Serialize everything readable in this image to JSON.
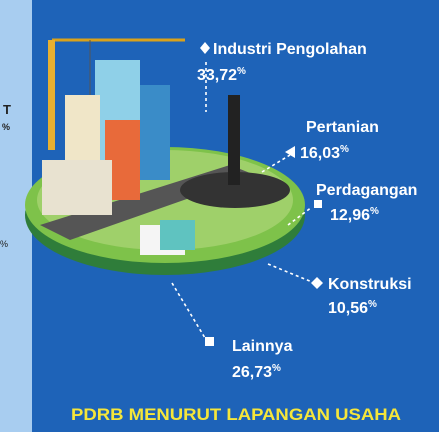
{
  "left_fragments": {
    "top": "T",
    "top_unit": "%",
    "bottom_unit": "%"
  },
  "items": [
    {
      "label": "Industri Pengolahan",
      "value": "33,72",
      "unit": "%"
    },
    {
      "label": "Pertanian",
      "value": "16,03",
      "unit": "%"
    },
    {
      "label": "Perdagangan",
      "value": "12,96",
      "unit": "%"
    },
    {
      "label": "Konstruksi",
      "value": "10,56",
      "unit": "%"
    },
    {
      "label": "Lainnya",
      "value": "26,73",
      "unit": "%"
    }
  ],
  "footer": {
    "title": "PDRB MENURUT LAPANGAN USAHA"
  }
}
